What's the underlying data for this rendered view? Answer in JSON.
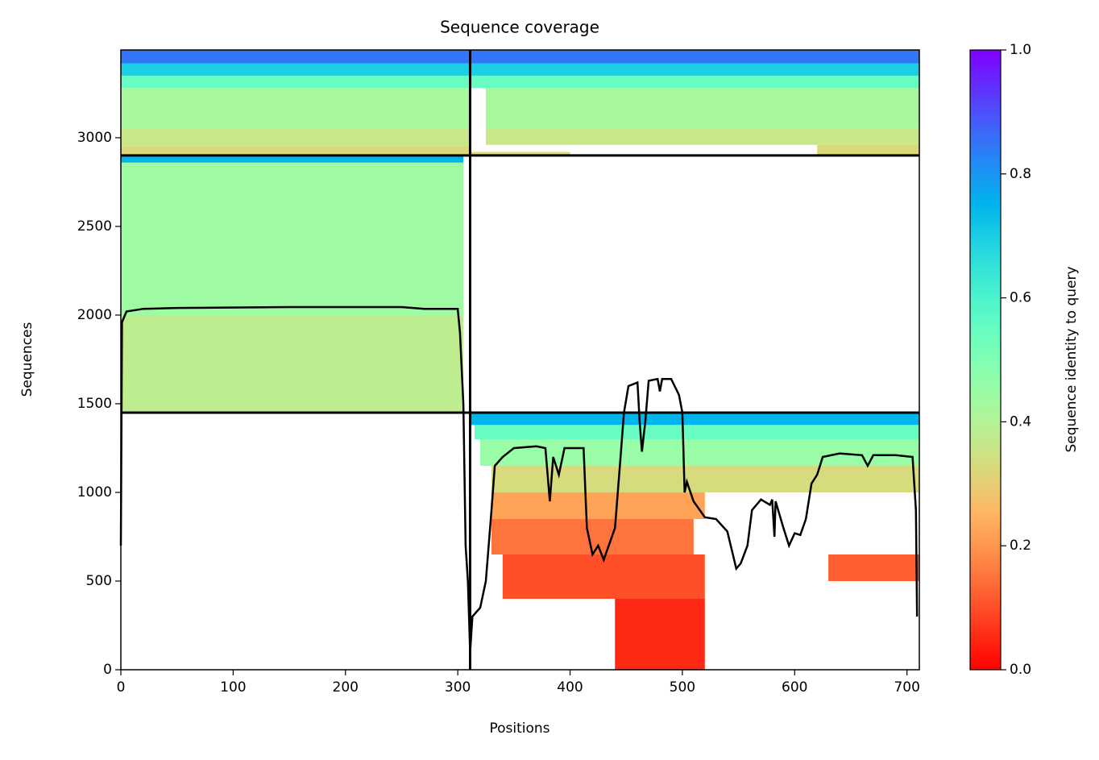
{
  "chart_data": {
    "type": "coverage",
    "title": "Sequence coverage",
    "xlabel": "Positions",
    "ylabel": "Sequences",
    "colorbar_label": "Sequence identity to query",
    "xlim": [
      0,
      711
    ],
    "ylim": [
      0,
      3495
    ],
    "xticks": [
      0,
      100,
      200,
      300,
      400,
      500,
      600,
      700
    ],
    "yticks": [
      0,
      500,
      1000,
      1500,
      2000,
      2500,
      3000
    ],
    "clim": [
      0,
      1
    ],
    "cticks": [
      {
        "value": 0,
        "label": "0.0"
      },
      {
        "value": 0.2,
        "label": "0.2"
      },
      {
        "value": 0.4,
        "label": "0.4"
      },
      {
        "value": 0.6,
        "label": "0.6"
      },
      {
        "value": 0.8,
        "label": "0.8"
      },
      {
        "value": 1,
        "label": "1.0"
      }
    ],
    "colormap": "rainbow_r",
    "line_color": "#000000",
    "dividers": {
      "x": [
        311
      ],
      "y": [
        1450,
        2900
      ]
    },
    "bands": [
      {
        "x": [
          0,
          305
        ],
        "y": [
          1450,
          2000
        ],
        "identity": 0.38
      },
      {
        "x": [
          0,
          305
        ],
        "y": [
          2000,
          2860
        ],
        "identity": 0.44
      },
      {
        "x": [
          0,
          305
        ],
        "y": [
          2860,
          2900
        ],
        "identity": 0.75
      },
      {
        "x": [
          0,
          311
        ],
        "y": [
          2900,
          2950
        ],
        "identity": 0.32
      },
      {
        "x": [
          0,
          311
        ],
        "y": [
          2950,
          3050
        ],
        "identity": 0.36
      },
      {
        "x": [
          0,
          311
        ],
        "y": [
          3050,
          3280
        ],
        "identity": 0.42
      },
      {
        "x": [
          0,
          311
        ],
        "y": [
          3280,
          3350
        ],
        "identity": 0.55
      },
      {
        "x": [
          0,
          311
        ],
        "y": [
          3350,
          3420
        ],
        "identity": 0.7
      },
      {
        "x": [
          0,
          311
        ],
        "y": [
          3420,
          3495
        ],
        "identity": 0.85
      },
      {
        "x": [
          311,
          400
        ],
        "y": [
          2900,
          2920
        ],
        "identity": 0.32
      },
      {
        "x": [
          620,
          711
        ],
        "y": [
          2900,
          2960
        ],
        "identity": 0.32
      },
      {
        "x": [
          325,
          711
        ],
        "y": [
          2960,
          3050
        ],
        "identity": 0.36
      },
      {
        "x": [
          325,
          711
        ],
        "y": [
          3050,
          3280
        ],
        "identity": 0.42
      },
      {
        "x": [
          311,
          711
        ],
        "y": [
          3280,
          3350
        ],
        "identity": 0.55
      },
      {
        "x": [
          311,
          711
        ],
        "y": [
          3350,
          3420
        ],
        "identity": 0.7
      },
      {
        "x": [
          311,
          711
        ],
        "y": [
          3420,
          3495
        ],
        "identity": 0.85
      },
      {
        "x": [
          311,
          711
        ],
        "y": [
          1380,
          1450
        ],
        "identity": 0.75
      },
      {
        "x": [
          315,
          711
        ],
        "y": [
          1300,
          1380
        ],
        "identity": 0.55
      },
      {
        "x": [
          320,
          711
        ],
        "y": [
          1150,
          1300
        ],
        "identity": 0.45
      },
      {
        "x": [
          330,
          711
        ],
        "y": [
          1000,
          1150
        ],
        "identity": 0.33
      },
      {
        "x": [
          330,
          520
        ],
        "y": [
          850,
          1000
        ],
        "identity": 0.22
      },
      {
        "x": [
          330,
          510
        ],
        "y": [
          650,
          850
        ],
        "identity": 0.15
      },
      {
        "x": [
          630,
          711
        ],
        "y": [
          500,
          650
        ],
        "identity": 0.12
      },
      {
        "x": [
          340,
          520
        ],
        "y": [
          400,
          650
        ],
        "identity": 0.1
      },
      {
        "x": [
          440,
          520
        ],
        "y": [
          0,
          400
        ],
        "identity": 0.05
      }
    ],
    "coverage": {
      "x": [
        0,
        1,
        5,
        20,
        50,
        150,
        250,
        270,
        300,
        302,
        305,
        307,
        309,
        311,
        313,
        320,
        325,
        330,
        333,
        340,
        350,
        370,
        378,
        382,
        385,
        390,
        395,
        412,
        415,
        420,
        425,
        430,
        440,
        445,
        448,
        452,
        460,
        462,
        464,
        467,
        470,
        478,
        480,
        482,
        490,
        497,
        500,
        502,
        504,
        510,
        520,
        530,
        540,
        545,
        548,
        552,
        558,
        562,
        570,
        578,
        580,
        582,
        583,
        590,
        595,
        600,
        605,
        610,
        615,
        620,
        625,
        640,
        660,
        665,
        670,
        690,
        705,
        708,
        709
      ],
      "values": [
        700,
        1960,
        2020,
        2035,
        2040,
        2045,
        2045,
        2035,
        2035,
        1900,
        1500,
        700,
        500,
        100,
        300,
        350,
        500,
        900,
        1150,
        1200,
        1250,
        1260,
        1250,
        950,
        1200,
        1100,
        1250,
        1250,
        800,
        650,
        700,
        620,
        800,
        1200,
        1450,
        1600,
        1620,
        1400,
        1230,
        1400,
        1630,
        1640,
        1570,
        1640,
        1640,
        1550,
        1450,
        1000,
        1060,
        950,
        860,
        850,
        780,
        650,
        570,
        600,
        700,
        900,
        960,
        930,
        960,
        750,
        950,
        800,
        700,
        770,
        760,
        850,
        1050,
        1100,
        1200,
        1220,
        1210,
        1150,
        1210,
        1210,
        1200,
        900,
        300
      ]
    }
  }
}
